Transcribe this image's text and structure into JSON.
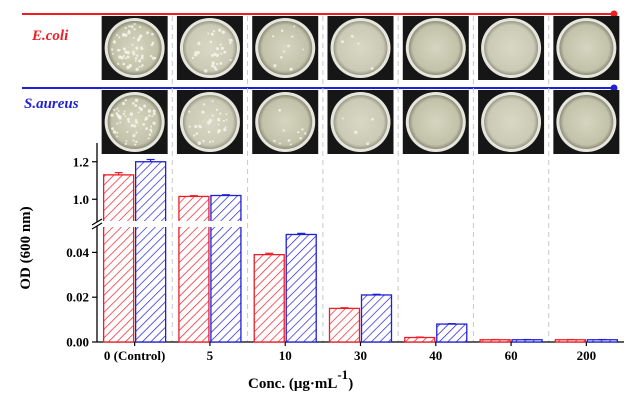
{
  "strains": {
    "ecoli": {
      "label": "E.coli",
      "color": "#ee1c25"
    },
    "saureus": {
      "label": "S.aureus",
      "color": "#1f1fd6"
    }
  },
  "plate_images": {
    "description_rows": [
      "ecoli",
      "saureus"
    ],
    "count_per_row": 7
  },
  "chart_data": {
    "type": "bar",
    "categories": [
      "0 (Control)",
      "5",
      "10",
      "30",
      "40",
      "60",
      "200"
    ],
    "series": [
      {
        "name": "E.coli",
        "values": [
          1.13,
          1.015,
          0.039,
          0.015,
          0.002,
          0.001,
          0.001
        ],
        "errors": [
          0.012,
          0.004,
          0.0006,
          0.0003,
          0.0002,
          0.0001,
          0.0001
        ],
        "color": "#ee1c25",
        "pattern": "hatch"
      },
      {
        "name": "S.aureus",
        "values": [
          1.2,
          1.02,
          0.048,
          0.021,
          0.008,
          0.001,
          0.001
        ],
        "errors": [
          0.012,
          0.004,
          0.0005,
          0.0003,
          0.0002,
          0.0001,
          0.0001
        ],
        "color": "#1f1fd6",
        "pattern": "hatch"
      }
    ],
    "xlabel_main": "Conc.  (μg·mL",
    "xlabel_sup": "-1",
    "xlabel_close": ")",
    "ylabel": "OD (600 nm)",
    "y_axis_break": true,
    "y_lower": {
      "range": [
        0,
        0.05
      ],
      "ticks": [
        0.0,
        0.02,
        0.04
      ],
      "tick_labels": [
        "0.00",
        "0.02",
        "0.04"
      ]
    },
    "y_upper": {
      "range": [
        0.9,
        1.3
      ],
      "ticks": [
        1.0,
        1.2
      ],
      "tick_labels": [
        "1.0",
        "1.2"
      ]
    },
    "grid": "vertical dashed separators between categories"
  }
}
